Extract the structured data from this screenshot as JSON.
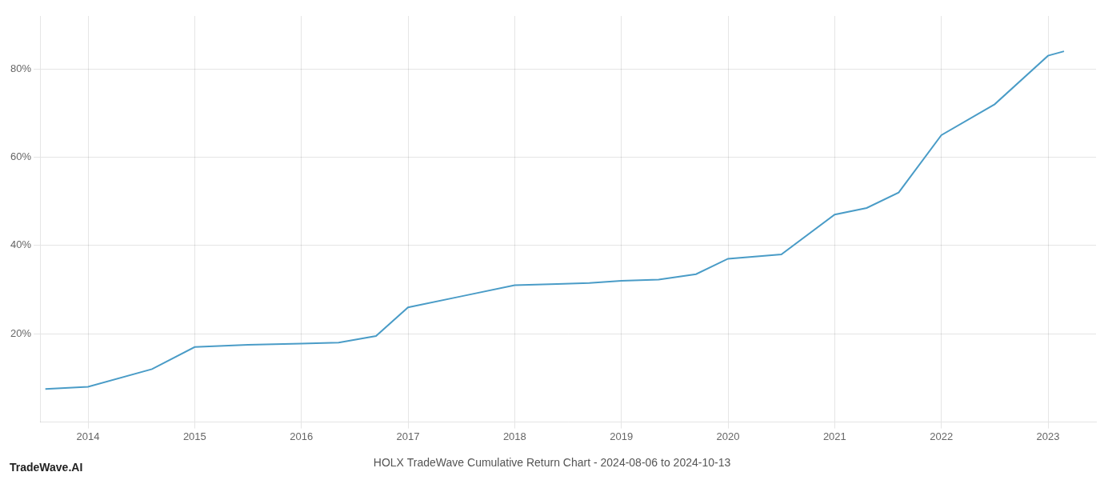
{
  "chart_data": {
    "type": "line",
    "title": "HOLX TradeWave Cumulative Return Chart - 2024-08-06 to 2024-10-13",
    "annotations": [
      "TradeWave.AI"
    ],
    "x": [
      2013.6,
      2014.0,
      2014.6,
      2015.0,
      2015.5,
      2016.0,
      2016.35,
      2016.7,
      2017.0,
      2017.5,
      2018.0,
      2018.4,
      2018.7,
      2019.0,
      2019.35,
      2019.7,
      2020.0,
      2020.5,
      2021.0,
      2021.3,
      2021.6,
      2022.0,
      2022.5,
      2023.0,
      2023.15
    ],
    "values": [
      7.5,
      8.0,
      12.0,
      17.0,
      17.5,
      17.8,
      18.0,
      19.5,
      26.0,
      28.5,
      31.0,
      31.3,
      31.5,
      32.0,
      32.3,
      33.5,
      37.0,
      38.0,
      47.0,
      48.5,
      52.0,
      65.0,
      72.0,
      83.0,
      84.0
    ],
    "color": "#4a9cc7",
    "xlim": [
      2013.55,
      2023.45
    ],
    "ylim": [
      0,
      92
    ],
    "xticks": [
      2014,
      2015,
      2016,
      2017,
      2018,
      2019,
      2020,
      2021,
      2022,
      2023
    ],
    "yticks": [
      {
        "value": 20,
        "label": "20%"
      },
      {
        "value": 40,
        "label": "40%"
      },
      {
        "value": 60,
        "label": "60%"
      },
      {
        "value": 80,
        "label": "80%"
      }
    ],
    "grid": true
  }
}
